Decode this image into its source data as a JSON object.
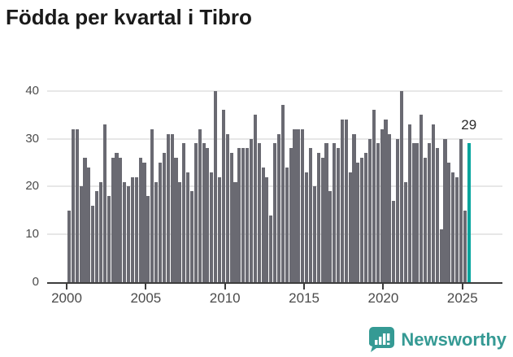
{
  "title": "Födda per kvartal i Tibro",
  "colors": {
    "bar": "#6a6a72",
    "accent": "#00a49d",
    "axis": "#3d3d3d",
    "grid": "#e7e7e7",
    "tick_label": "#4b4b4b",
    "logo": "#359a94",
    "title_text": "#1a1a1a"
  },
  "chart_data": {
    "type": "bar",
    "title": "Födda per kvartal i Tibro",
    "x_unit": "quarter",
    "start_quarter": "2000-Q1",
    "end_quarter": "2025-Q2",
    "x_tick_labels": [
      "2000",
      "2005",
      "2010",
      "2015",
      "2020",
      "2025"
    ],
    "y_tick_labels": [
      "0",
      "10",
      "20",
      "30",
      "40"
    ],
    "y_ticks": [
      0,
      10,
      20,
      30,
      40
    ],
    "ylim": [
      0,
      42
    ],
    "grid": "horizontal",
    "legend": "none",
    "highlight_last_bar": true,
    "last_bar_label": "29",
    "values": [
      15,
      32,
      32,
      20,
      26,
      24,
      16,
      19,
      21,
      33,
      18,
      26,
      27,
      26,
      21,
      20,
      22,
      22,
      26,
      25,
      18,
      32,
      21,
      25,
      27,
      31,
      31,
      26,
      21,
      29,
      23,
      19,
      29,
      32,
      29,
      28,
      23,
      40,
      22,
      36,
      31,
      27,
      21,
      28,
      28,
      28,
      30,
      35,
      29,
      24,
      22,
      14,
      29,
      31,
      37,
      24,
      28,
      32,
      32,
      32,
      23,
      28,
      20,
      27,
      26,
      29,
      19,
      29,
      28,
      34,
      34,
      23,
      31,
      25,
      26,
      27,
      30,
      36,
      29,
      32,
      34,
      31,
      17,
      30,
      40,
      21,
      33,
      29,
      29,
      35,
      26,
      29,
      33,
      28,
      11,
      30,
      25,
      23,
      22,
      30,
      15,
      29
    ]
  },
  "annotation": {
    "last_value": "29"
  },
  "logo": {
    "text": "Newsworthy",
    "icon": "newsworthy-bar-chart-bubble-icon"
  }
}
